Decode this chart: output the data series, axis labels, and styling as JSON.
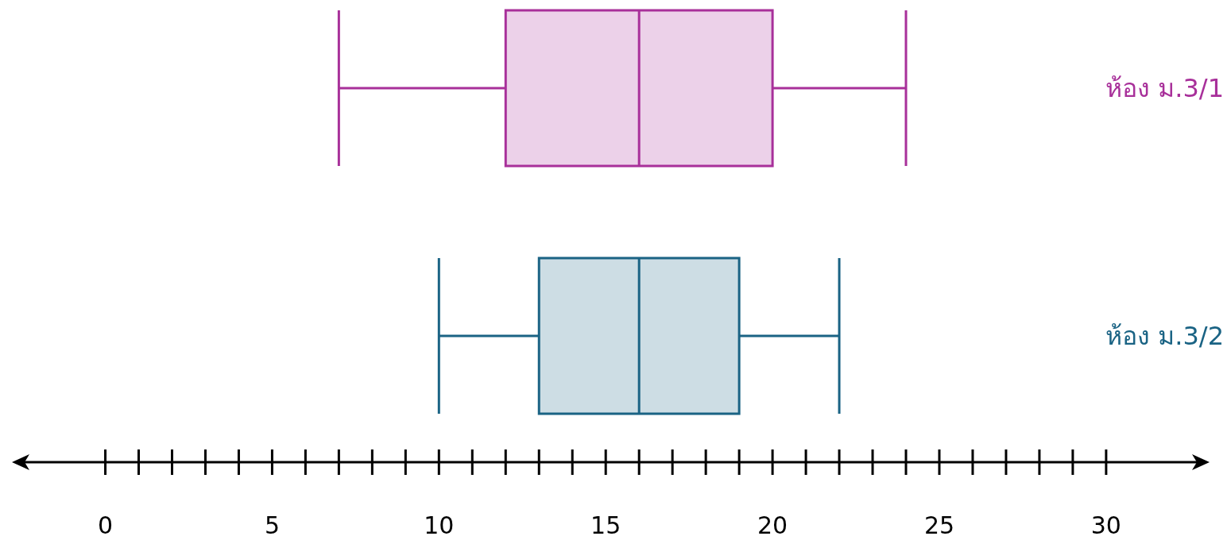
{
  "chart_data": {
    "type": "box",
    "orientation": "horizontal",
    "categories": [
      "ห้อง ม.3/1",
      "ห้อง ม.3/2"
    ],
    "colors": [
      "#a8309a",
      "#1a6384"
    ],
    "boxes": [
      {
        "low": 7,
        "q1": 12,
        "median": 16,
        "q3": 20,
        "high": 24
      },
      {
        "low": 10,
        "q1": 13,
        "median": 16,
        "q3": 19,
        "high": 22
      }
    ],
    "xlim": [
      -2.8,
      33.1
    ],
    "xticks": [
      0,
      {
        "value": 1,
        "label": null
      },
      {
        "value": 2,
        "label": null
      },
      {
        "value": 3,
        "label": null
      },
      {
        "value": 4,
        "label": null
      },
      5,
      {
        "value": 6,
        "label": null
      },
      {
        "value": 7,
        "label": null
      },
      {
        "value": 8,
        "label": null
      },
      {
        "value": 9,
        "label": null
      },
      10,
      {
        "value": 11,
        "label": null
      },
      {
        "value": 12,
        "label": null
      },
      {
        "value": 13,
        "label": null
      },
      {
        "value": 14,
        "label": null
      },
      15,
      {
        "value": 16,
        "label": null
      },
      {
        "value": 17,
        "label": null
      },
      {
        "value": 18,
        "label": null
      },
      {
        "value": 19,
        "label": null
      },
      20,
      {
        "value": 21,
        "label": null
      },
      {
        "value": 22,
        "label": null
      },
      {
        "value": 23,
        "label": null
      },
      {
        "value": 24,
        "label": null
      },
      25,
      {
        "value": 26,
        "label": null
      },
      {
        "value": 27,
        "label": null
      },
      {
        "value": 28,
        "label": null
      },
      {
        "value": 29,
        "label": null
      },
      30
    ]
  }
}
